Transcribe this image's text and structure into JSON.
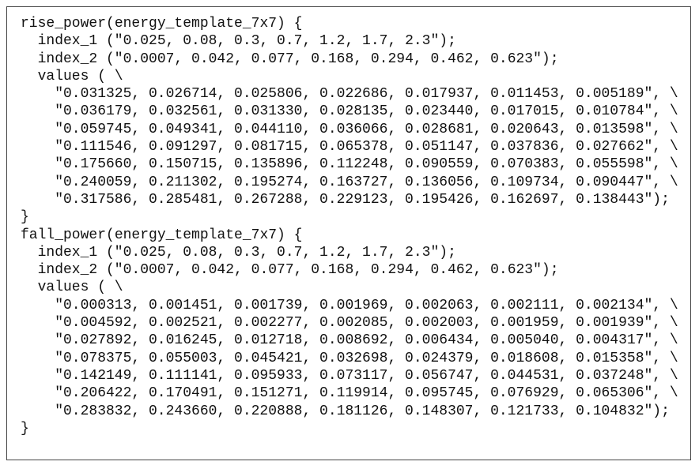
{
  "blocks": [
    {
      "header": "rise_power(energy_template_7x7) {",
      "index_1": "index_1 (\"0.025, 0.08, 0.3, 0.7, 1.2, 1.7, 2.3\");",
      "index_2": "index_2 (\"0.0007, 0.042, 0.077, 0.168, 0.294, 0.462, 0.623\");",
      "values_open": "values ( \\",
      "rows": [
        "\"0.031325, 0.026714, 0.025806, 0.022686, 0.017937, 0.011453, 0.005189\", \\",
        "\"0.036179, 0.032561, 0.031330, 0.028135, 0.023440, 0.017015, 0.010784\", \\",
        "\"0.059745, 0.049341, 0.044110, 0.036066, 0.028681, 0.020643, 0.013598\", \\",
        "\"0.111546, 0.091297, 0.081715, 0.065378, 0.051147, 0.037836, 0.027662\", \\",
        "\"0.175660, 0.150715, 0.135896, 0.112248, 0.090559, 0.070383, 0.055598\", \\",
        "\"0.240059, 0.211302, 0.195274, 0.163727, 0.136056, 0.109734, 0.090447\", \\",
        "\"0.317586, 0.285481, 0.267288, 0.229123, 0.195426, 0.162697, 0.138443\");"
      ],
      "close": "}"
    },
    {
      "header": "fall_power(energy_template_7x7) {",
      "index_1": "index_1 (\"0.025, 0.08, 0.3, 0.7, 1.2, 1.7, 2.3\");",
      "index_2": "index_2 (\"0.0007, 0.042, 0.077, 0.168, 0.294, 0.462, 0.623\");",
      "values_open": "values ( \\",
      "rows": [
        "\"0.000313, 0.001451, 0.001739, 0.001969, 0.002063, 0.002111, 0.002134\", \\",
        "\"0.004592, 0.002521, 0.002277, 0.002085, 0.002003, 0.001959, 0.001939\", \\",
        "\"0.027892, 0.016245, 0.012718, 0.008692, 0.006434, 0.005040, 0.004317\", \\",
        "\"0.078375, 0.055003, 0.045421, 0.032698, 0.024379, 0.018608, 0.015358\", \\",
        "\"0.142149, 0.111141, 0.095933, 0.073117, 0.056747, 0.044531, 0.037248\", \\",
        "\"0.206422, 0.170491, 0.151271, 0.119914, 0.095745, 0.076929, 0.065306\", \\",
        "\"0.283832, 0.243660, 0.220888, 0.181126, 0.148307, 0.121733, 0.104832\");"
      ],
      "close": "}"
    }
  ]
}
